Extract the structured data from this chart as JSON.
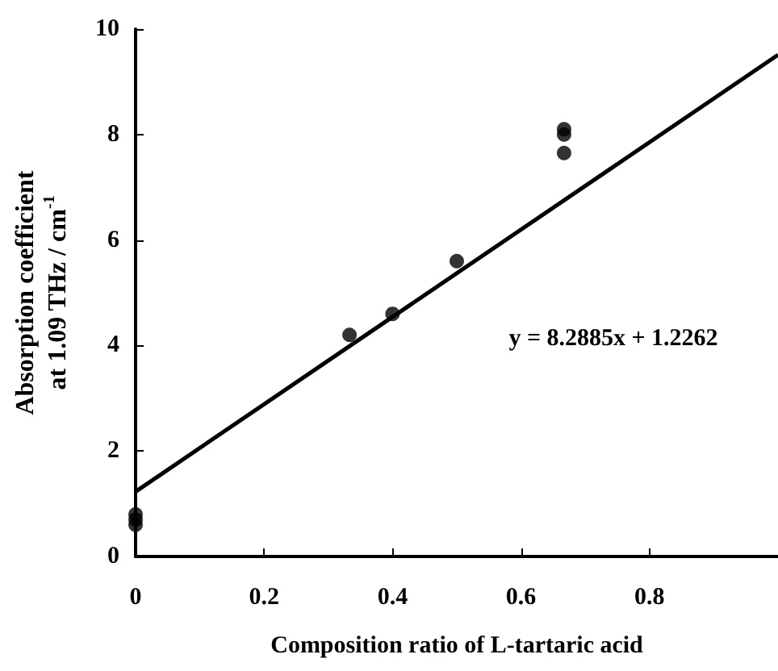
{
  "chart_data": {
    "type": "scatter",
    "xlabel": "Composition ratio of L-tartaric acid",
    "ylabel": "Absorption coefficient\nat 1.09 THz / cm$^{-1}$",
    "series": [
      {
        "color": "#000000",
        "marker": "circle",
        "x": [
          0,
          0,
          0,
          0.333,
          0.4,
          0.5,
          0.667,
          0.667,
          0.667
        ],
        "values": [
          0.6,
          0.7,
          0.8,
          4.2,
          4.6,
          5.6,
          7.65,
          8.0,
          8.1
        ]
      },
      {
        "type": "line",
        "color": "#000000",
        "x": [
          0,
          1
        ],
        "values": [
          1.23,
          9.51
        ]
      }
    ],
    "annotations": [
      "y = 8.2885x + 1.2262"
    ],
    "xlim": [
      0,
      1
    ],
    "xticks": [
      0,
      0.2,
      0.4,
      0.6,
      0.8
    ],
    "ylim": [
      0,
      10
    ],
    "yticks": [
      0,
      2,
      4,
      6,
      8,
      10
    ],
    "grid": false
  }
}
